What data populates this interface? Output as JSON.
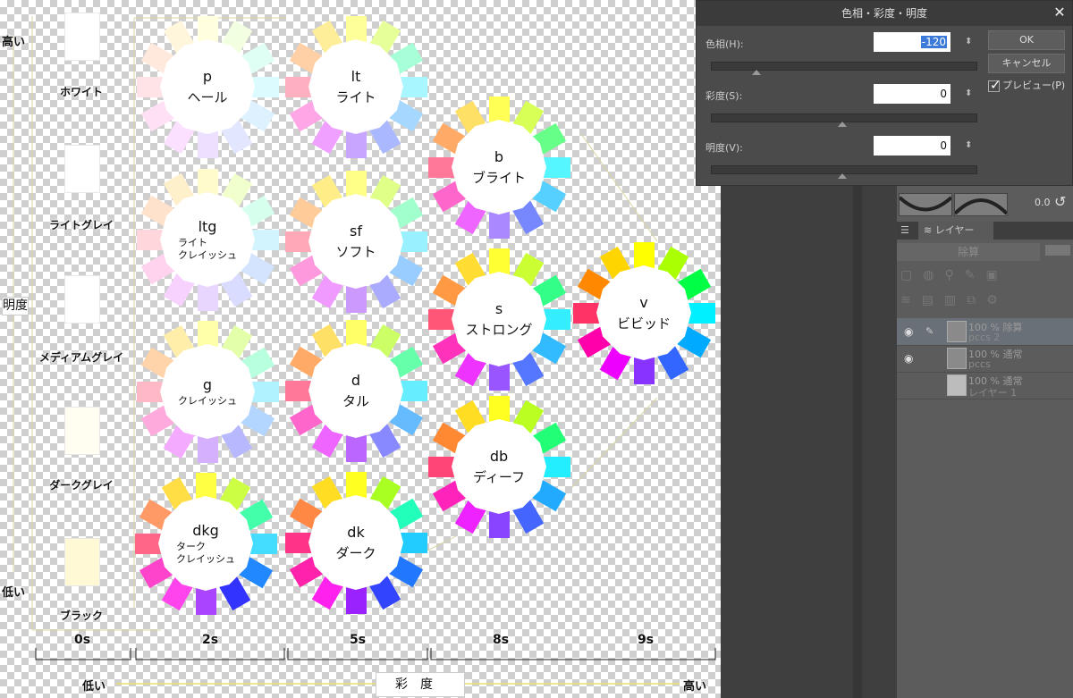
{
  "chart": {
    "gray_labels": [
      "ホワイト",
      "ライトグレイ",
      "メディアムグレイ",
      "ダークグレイ",
      "ブラック"
    ],
    "gray_swatch_colors": [
      "#ffffff",
      "#ffffff",
      "#ffffff",
      "#fffef1",
      "#fffad5"
    ],
    "axis_high_top": "高い",
    "axis_low_bottom": "低い",
    "vertical_label": "明度",
    "sat_label": "彩度",
    "sat_low": "低い",
    "sat_high": "高い",
    "columns": [
      "0s",
      "2s",
      "5s",
      "8s",
      "9s"
    ],
    "flowers": [
      {
        "id": "p",
        "code": "p",
        "name": "ヘール",
        "small": false
      },
      {
        "id": "lt",
        "code": "lt",
        "name": "ライト",
        "small": false
      },
      {
        "id": "b",
        "code": "b",
        "name": "ブライト",
        "small": false
      },
      {
        "id": "ltg",
        "code": "ltg",
        "name": "ライト\nクレイッシュ",
        "small": true
      },
      {
        "id": "sf",
        "code": "sf",
        "name": "ソフト",
        "small": false
      },
      {
        "id": "s",
        "code": "s",
        "name": "ストロング",
        "small": false
      },
      {
        "id": "v",
        "code": "v",
        "name": "ビビッド",
        "small": false
      },
      {
        "id": "g",
        "code": "g",
        "name": "クレイッシュ",
        "small": true
      },
      {
        "id": "d",
        "code": "d",
        "name": "タル",
        "small": false
      },
      {
        "id": "db",
        "code": "db",
        "name": "ディーフ",
        "small": false
      },
      {
        "id": "dkg",
        "code": "dkg",
        "name": "ターク\nクレイッシュ",
        "small": true
      },
      {
        "id": "dk",
        "code": "dk",
        "name": "ダーク",
        "small": false
      }
    ],
    "petal_palettes": {
      "p": [
        "#ffffe0",
        "#f2ffe0",
        "#e0fff4",
        "#dcfbff",
        "#def1ff",
        "#e2e6ff",
        "#ede0ff",
        "#fbe0ff",
        "#ffe0f4",
        "#ffe3e6",
        "#ffe9dc",
        "#fff6dc"
      ],
      "lt": [
        "#ffff99",
        "#e6ff99",
        "#a6ffd6",
        "#a8f6ff",
        "#a6d8ff",
        "#aab8ff",
        "#c8a6ff",
        "#f0a0ff",
        "#ffa6e6",
        "#ffb0c0",
        "#ffd0a6",
        "#ffee99"
      ],
      "b": [
        "#ffff55",
        "#d8ff55",
        "#66ff88",
        "#55f6ff",
        "#55d0ff",
        "#7788ff",
        "#aa88ff",
        "#ee66ff",
        "#ff66cc",
        "#ff7799",
        "#ffaa66",
        "#ffe066"
      ],
      "ltg": [
        "#fffbcc",
        "#f0ffcc",
        "#d6ffee",
        "#d2f4ff",
        "#d4e4ff",
        "#dadcff",
        "#e8d6ff",
        "#f8d2ff",
        "#ffd2ee",
        "#ffd6dc",
        "#ffe2cc",
        "#fff0cc"
      ],
      "sf": [
        "#ffff88",
        "#e0ff88",
        "#a0ffcc",
        "#99f0ff",
        "#99ccff",
        "#aaaaff",
        "#cc99ff",
        "#f099ff",
        "#ff99dd",
        "#ffa8b8",
        "#ffcc99",
        "#ffee88"
      ],
      "s": [
        "#ffff33",
        "#ccff33",
        "#33ff88",
        "#33eeff",
        "#33bbff",
        "#5577ff",
        "#9955ff",
        "#ee33ff",
        "#ff33bb",
        "#ff5577",
        "#ff9944",
        "#ffdd33"
      ],
      "v": [
        "#ffff00",
        "#aaff00",
        "#00ff44",
        "#00f0ff",
        "#00aaff",
        "#3366ff",
        "#8833ff",
        "#ee00ff",
        "#ff00aa",
        "#ff3366",
        "#ff8800",
        "#ffd500"
      ],
      "g": [
        "#ffffaa",
        "#e4ffaa",
        "#b8ffdd",
        "#b0f2ff",
        "#b2d6ff",
        "#b8b8ff",
        "#d4b0ff",
        "#f4aaff",
        "#ffaadd",
        "#ffb8c6",
        "#ffd4aa",
        "#ffeeaa"
      ],
      "d": [
        "#ffff66",
        "#ccff66",
        "#66ffaa",
        "#66eeff",
        "#66bbff",
        "#8888ff",
        "#bb66ff",
        "#ee66ff",
        "#ff66cc",
        "#ff7799",
        "#ffaa66",
        "#ffe066"
      ],
      "db": [
        "#ffff22",
        "#bbff22",
        "#22ff77",
        "#22eeff",
        "#22aaff",
        "#4466ff",
        "#8844ff",
        "#ee22ff",
        "#ff22bb",
        "#ff4477",
        "#ff8833",
        "#ffdd22"
      ],
      "dkg": [
        "#ffff44",
        "#ccff44",
        "#44ffaa",
        "#44ddff",
        "#2288ff",
        "#3333ff",
        "#aa44ff",
        "#ff44ee",
        "#ff44cc",
        "#ff6688",
        "#ff9966",
        "#ffdd44"
      ],
      "dk": [
        "#ffff22",
        "#aaff22",
        "#22ffbb",
        "#22ccff",
        "#2277ff",
        "#3344ff",
        "#9922ff",
        "#ff22ee",
        "#ff22aa",
        "#ff3388",
        "#ff8844",
        "#ffdd22"
      ]
    }
  },
  "dialog": {
    "title": "色相・彩度・明度",
    "hue_label": "色相(H):",
    "hue_value": "-120",
    "saturation_label": "彩度(S):",
    "saturation_value": "0",
    "value_label": "明度(V):",
    "value_value": "0",
    "ok": "OK",
    "cancel": "キャンセル",
    "preview": "プレビュー(P)"
  },
  "panel": {
    "opacity_readout": "0.0",
    "layer_tab": "レイヤー",
    "blend_mode": "除算",
    "layers": [
      {
        "line1": "100 % 除算",
        "line2": "pccs 2"
      },
      {
        "line1": "100 % 通常",
        "line2": "pccs"
      },
      {
        "line1": "100 % 通常",
        "line2": "レイヤー 1"
      }
    ]
  }
}
